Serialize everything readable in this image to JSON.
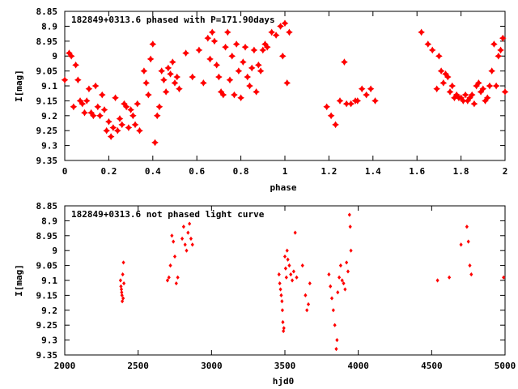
{
  "chart_data": [
    {
      "type": "scatter",
      "title": "182849+0313.6 phased with P=171.90days",
      "xlabel": "phase",
      "ylabel": "I[mag]",
      "xlim": [
        0,
        2
      ],
      "ylim": [
        9.35,
        8.85
      ],
      "y_inverted": true,
      "grid": false,
      "marker_color": "#ff0000",
      "x_ticks": [
        "0",
        "0.2",
        "0.4",
        "0.6",
        "0.8",
        "1",
        "1.2",
        "1.4",
        "1.6",
        "1.8",
        "2"
      ],
      "y_ticks": [
        "8.85",
        "8.9",
        "8.95",
        "9",
        "9.05",
        "9.1",
        "9.15",
        "9.2",
        "9.25",
        "9.3",
        "9.35"
      ],
      "points": [
        [
          0.0,
          9.08
        ],
        [
          0.02,
          8.99
        ],
        [
          0.03,
          9.0
        ],
        [
          0.04,
          9.17
        ],
        [
          0.05,
          9.03
        ],
        [
          0.06,
          9.08
        ],
        [
          0.07,
          9.15
        ],
        [
          0.08,
          9.16
        ],
        [
          0.09,
          9.19
        ],
        [
          0.1,
          9.15
        ],
        [
          0.11,
          9.11
        ],
        [
          0.12,
          9.19
        ],
        [
          0.13,
          9.2
        ],
        [
          0.14,
          9.1
        ],
        [
          0.15,
          9.17
        ],
        [
          0.16,
          9.2
        ],
        [
          0.17,
          9.13
        ],
        [
          0.18,
          9.18
        ],
        [
          0.19,
          9.25
        ],
        [
          0.2,
          9.22
        ],
        [
          0.21,
          9.27
        ],
        [
          0.22,
          9.24
        ],
        [
          0.23,
          9.14
        ],
        [
          0.24,
          9.25
        ],
        [
          0.25,
          9.21
        ],
        [
          0.26,
          9.23
        ],
        [
          0.27,
          9.16
        ],
        [
          0.28,
          9.17
        ],
        [
          0.29,
          9.24
        ],
        [
          0.3,
          9.18
        ],
        [
          0.31,
          9.2
        ],
        [
          0.32,
          9.23
        ],
        [
          0.33,
          9.16
        ],
        [
          0.34,
          9.25
        ],
        [
          0.36,
          9.05
        ],
        [
          0.37,
          9.09
        ],
        [
          0.38,
          9.13
        ],
        [
          0.39,
          9.01
        ],
        [
          0.4,
          8.96
        ],
        [
          0.41,
          9.29
        ],
        [
          0.42,
          9.2
        ],
        [
          0.43,
          9.17
        ],
        [
          0.44,
          9.05
        ],
        [
          0.45,
          9.08
        ],
        [
          0.46,
          9.12
        ],
        [
          0.47,
          9.04
        ],
        [
          0.48,
          9.06
        ],
        [
          0.49,
          9.02
        ],
        [
          0.5,
          9.09
        ],
        [
          0.51,
          9.07
        ],
        [
          0.52,
          9.11
        ],
        [
          0.55,
          8.99
        ],
        [
          0.58,
          9.07
        ],
        [
          0.61,
          8.98
        ],
        [
          0.63,
          9.09
        ],
        [
          0.65,
          8.94
        ],
        [
          0.66,
          9.01
        ],
        [
          0.67,
          8.92
        ],
        [
          0.68,
          8.95
        ],
        [
          0.69,
          9.03
        ],
        [
          0.7,
          9.07
        ],
        [
          0.71,
          9.12
        ],
        [
          0.72,
          9.13
        ],
        [
          0.73,
          8.97
        ],
        [
          0.74,
          8.92
        ],
        [
          0.75,
          9.08
        ],
        [
          0.76,
          9.0
        ],
        [
          0.77,
          9.13
        ],
        [
          0.78,
          8.96
        ],
        [
          0.79,
          9.05
        ],
        [
          0.8,
          9.14
        ],
        [
          0.81,
          9.02
        ],
        [
          0.82,
          8.97
        ],
        [
          0.83,
          9.07
        ],
        [
          0.84,
          9.1
        ],
        [
          0.85,
          9.04
        ],
        [
          0.86,
          8.98
        ],
        [
          0.87,
          9.12
        ],
        [
          0.88,
          9.03
        ],
        [
          0.89,
          9.05
        ],
        [
          0.9,
          8.98
        ],
        [
          0.91,
          8.96
        ],
        [
          0.92,
          8.97
        ],
        [
          0.94,
          8.92
        ],
        [
          0.96,
          8.93
        ],
        [
          0.98,
          8.9
        ],
        [
          0.99,
          9.0
        ],
        [
          1.0,
          8.89
        ],
        [
          1.01,
          9.09
        ],
        [
          1.02,
          8.92
        ],
        [
          1.19,
          9.17
        ],
        [
          1.21,
          9.2
        ],
        [
          1.23,
          9.23
        ],
        [
          1.25,
          9.15
        ],
        [
          1.27,
          9.02
        ],
        [
          1.28,
          9.16
        ],
        [
          1.3,
          9.16
        ],
        [
          1.32,
          9.15
        ],
        [
          1.33,
          9.15
        ],
        [
          1.35,
          9.11
        ],
        [
          1.37,
          9.13
        ],
        [
          1.39,
          9.11
        ],
        [
          1.41,
          9.15
        ],
        [
          1.62,
          8.92
        ],
        [
          1.65,
          8.96
        ],
        [
          1.67,
          8.98
        ],
        [
          1.69,
          9.11
        ],
        [
          1.7,
          9.0
        ],
        [
          1.71,
          9.05
        ],
        [
          1.72,
          9.09
        ],
        [
          1.73,
          9.06
        ],
        [
          1.74,
          9.07
        ],
        [
          1.75,
          9.12
        ],
        [
          1.76,
          9.1
        ],
        [
          1.77,
          9.14
        ],
        [
          1.78,
          9.13
        ],
        [
          1.79,
          9.14
        ],
        [
          1.8,
          9.14
        ],
        [
          1.81,
          9.15
        ],
        [
          1.82,
          9.13
        ],
        [
          1.83,
          9.15
        ],
        [
          1.84,
          9.14
        ],
        [
          1.85,
          9.13
        ],
        [
          1.86,
          9.16
        ],
        [
          1.87,
          9.1
        ],
        [
          1.88,
          9.09
        ],
        [
          1.89,
          9.12
        ],
        [
          1.9,
          9.11
        ],
        [
          1.91,
          9.15
        ],
        [
          1.92,
          9.14
        ],
        [
          1.93,
          9.1
        ],
        [
          1.94,
          9.05
        ],
        [
          1.95,
          8.96
        ],
        [
          1.96,
          9.1
        ],
        [
          1.97,
          9.0
        ],
        [
          1.98,
          8.98
        ],
        [
          1.99,
          8.94
        ],
        [
          2.0,
          9.12
        ]
      ]
    },
    {
      "type": "scatter",
      "title": "182849+0313.6 not phased light curve",
      "xlabel": "hjd0",
      "ylabel": "I[mag]",
      "xlim": [
        2000,
        5000
      ],
      "ylim": [
        9.35,
        8.85
      ],
      "y_inverted": true,
      "grid": false,
      "marker_color": "#ff0000",
      "x_ticks": [
        "2000",
        "2500",
        "3000",
        "3500",
        "4000",
        "4500",
        "5000"
      ],
      "y_ticks": [
        "8.85",
        "8.9",
        "8.95",
        "9",
        "9.05",
        "9.1",
        "9.15",
        "9.2",
        "9.25",
        "9.3",
        "9.35"
      ],
      "points": [
        [
          2380,
          9.1
        ],
        [
          2383,
          9.12
        ],
        [
          2386,
          9.13
        ],
        [
          2388,
          9.14
        ],
        [
          2390,
          9.15
        ],
        [
          2392,
          9.17
        ],
        [
          2395,
          9.08
        ],
        [
          2398,
          9.16
        ],
        [
          2400,
          9.04
        ],
        [
          2403,
          9.11
        ],
        [
          2700,
          9.1
        ],
        [
          2710,
          9.09
        ],
        [
          2720,
          9.05
        ],
        [
          2730,
          8.95
        ],
        [
          2740,
          8.97
        ],
        [
          2750,
          9.02
        ],
        [
          2760,
          9.11
        ],
        [
          2770,
          9.09
        ],
        [
          2800,
          8.96
        ],
        [
          2810,
          8.92
        ],
        [
          2820,
          8.98
        ],
        [
          2830,
          9.0
        ],
        [
          2840,
          8.94
        ],
        [
          2850,
          8.91
        ],
        [
          2860,
          8.96
        ],
        [
          2870,
          8.98
        ],
        [
          3460,
          9.08
        ],
        [
          3465,
          9.11
        ],
        [
          3470,
          9.13
        ],
        [
          3475,
          9.15
        ],
        [
          3480,
          9.17
        ],
        [
          3483,
          9.2
        ],
        [
          3486,
          9.24
        ],
        [
          3490,
          9.27
        ],
        [
          3493,
          9.26
        ],
        [
          3500,
          9.02
        ],
        [
          3505,
          9.06
        ],
        [
          3510,
          9.09
        ],
        [
          3515,
          9.0
        ],
        [
          3520,
          9.03
        ],
        [
          3530,
          9.05
        ],
        [
          3540,
          9.08
        ],
        [
          3550,
          9.1
        ],
        [
          3560,
          9.07
        ],
        [
          3570,
          8.94
        ],
        [
          3580,
          9.09
        ],
        [
          3620,
          9.05
        ],
        [
          3640,
          9.15
        ],
        [
          3650,
          9.2
        ],
        [
          3660,
          9.18
        ],
        [
          3670,
          9.11
        ],
        [
          3800,
          9.08
        ],
        [
          3810,
          9.12
        ],
        [
          3820,
          9.16
        ],
        [
          3830,
          9.2
        ],
        [
          3840,
          9.25
        ],
        [
          3850,
          9.33
        ],
        [
          3855,
          9.3
        ],
        [
          3860,
          9.14
        ],
        [
          3870,
          9.09
        ],
        [
          3880,
          9.05
        ],
        [
          3890,
          9.1
        ],
        [
          3900,
          9.11
        ],
        [
          3910,
          9.13
        ],
        [
          3920,
          9.04
        ],
        [
          3930,
          9.07
        ],
        [
          3940,
          8.88
        ],
        [
          3945,
          8.92
        ],
        [
          3950,
          9.0
        ],
        [
          4540,
          9.1
        ],
        [
          4620,
          9.09
        ],
        [
          4700,
          8.98
        ],
        [
          4740,
          8.92
        ],
        [
          4750,
          8.97
        ],
        [
          4760,
          9.05
        ],
        [
          4770,
          9.08
        ],
        [
          4990,
          9.09
        ]
      ]
    }
  ]
}
